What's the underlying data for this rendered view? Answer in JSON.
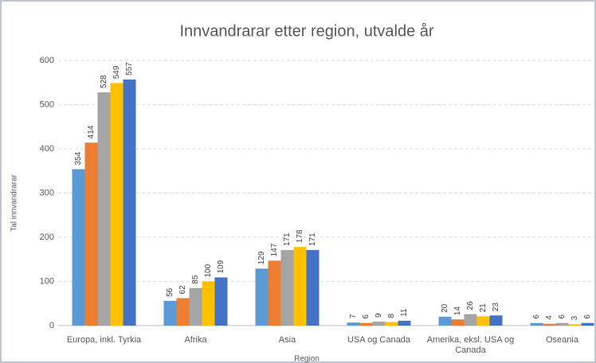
{
  "chart_data": {
    "type": "bar",
    "title": "Innvandrarar etter region, utvalde år",
    "x_label": "Region",
    "y_label": "Tal innvandrarar",
    "categories": [
      "Europa, inkl. Tyrkia",
      "Afrika",
      "Asia",
      "USA og Canada",
      "Amerika, eksl. USA og Canada",
      "Oseania"
    ],
    "series": [
      {
        "color": "#5b9bd5",
        "values": [
          354,
          56,
          129,
          7,
          20,
          6
        ]
      },
      {
        "color": "#ed7d31",
        "values": [
          414,
          62,
          147,
          6,
          14,
          4
        ]
      },
      {
        "color": "#a5a5a5",
        "values": [
          528,
          85,
          171,
          9,
          26,
          6
        ]
      },
      {
        "color": "#ffc000",
        "values": [
          549,
          100,
          178,
          8,
          21,
          3
        ]
      },
      {
        "color": "#4472c4",
        "values": [
          557,
          109,
          171,
          11,
          23,
          6
        ]
      }
    ],
    "ylim": [
      0,
      600
    ],
    "yticks": [
      0,
      100,
      200,
      300,
      400,
      500,
      600
    ],
    "grid": true
  }
}
